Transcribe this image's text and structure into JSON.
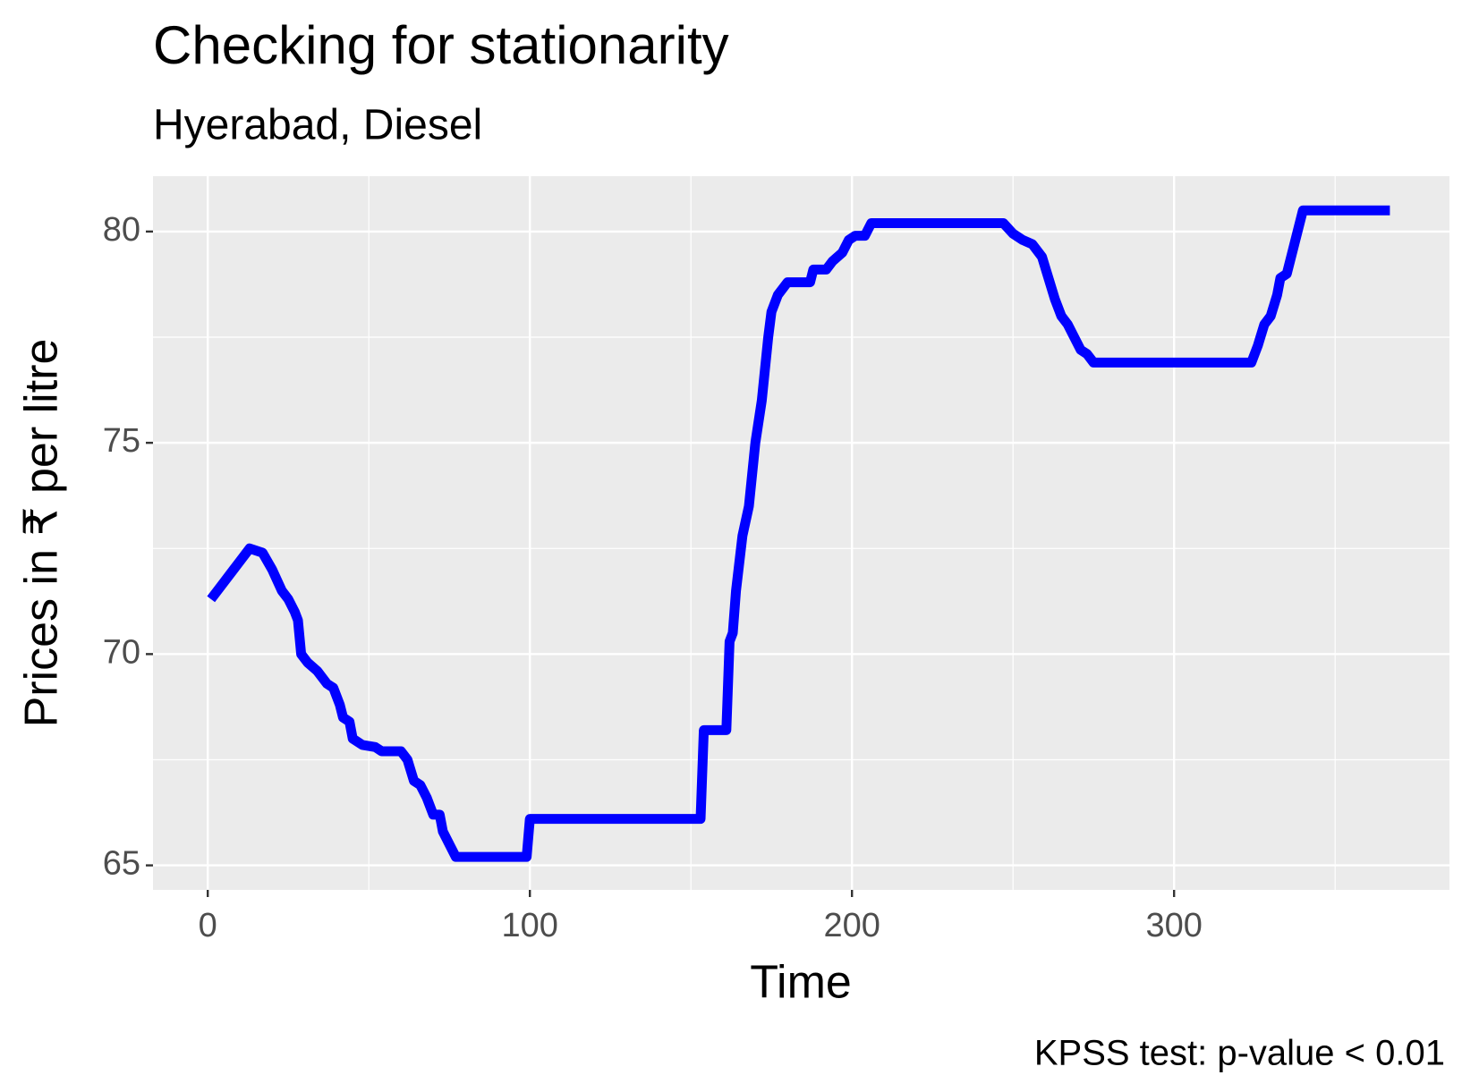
{
  "chart_data": {
    "type": "line",
    "title": "Checking for stationarity",
    "subtitle": "Hyerabad, Diesel",
    "x_label": "Time",
    "y_label": "Prices in ₹ per litre",
    "caption": "KPSS test: p-value < 0.01",
    "x": [
      1,
      5,
      8,
      10,
      13,
      17,
      20,
      23,
      25,
      27,
      28,
      29,
      31,
      34,
      37,
      39,
      41,
      42,
      44,
      45,
      48,
      52,
      54,
      58,
      60,
      62,
      64,
      66,
      68,
      70,
      72,
      73,
      75,
      77,
      99,
      100,
      153,
      154,
      161,
      162,
      163,
      164,
      166,
      168,
      170,
      172,
      174,
      175,
      177,
      180,
      187,
      188,
      192,
      194,
      197,
      199,
      201,
      204,
      206,
      247,
      250,
      253,
      256,
      259,
      261,
      263,
      265,
      267,
      269,
      271,
      273,
      275,
      324,
      326,
      328,
      330,
      332,
      333,
      335,
      337,
      340,
      367
    ],
    "series": [
      {
        "name": "Diesel",
        "color": "#0000ff",
        "values": [
          71.3,
          71.7,
          72.0,
          72.2,
          72.5,
          72.4,
          72.0,
          71.5,
          71.3,
          71.0,
          70.8,
          70.0,
          69.8,
          69.6,
          69.3,
          69.2,
          68.8,
          68.5,
          68.4,
          68.0,
          67.85,
          67.8,
          67.7,
          67.7,
          67.7,
          67.5,
          67.0,
          66.9,
          66.6,
          66.2,
          66.2,
          65.8,
          65.5,
          65.2,
          65.2,
          66.1,
          66.1,
          68.2,
          68.2,
          70.3,
          70.5,
          71.5,
          72.8,
          73.5,
          75.0,
          76.0,
          77.5,
          78.1,
          78.5,
          78.8,
          78.8,
          79.1,
          79.1,
          79.3,
          79.5,
          79.8,
          79.9,
          79.9,
          80.2,
          80.2,
          79.95,
          79.8,
          79.7,
          79.4,
          78.9,
          78.4,
          78.0,
          77.8,
          77.5,
          77.2,
          77.1,
          76.9,
          76.9,
          77.3,
          77.8,
          78.0,
          78.5,
          78.9,
          79.0,
          79.6,
          80.5,
          80.5
        ]
      }
    ],
    "xlim": [
      -17,
      385.5
    ],
    "ylim": [
      64.42,
      81.31
    ],
    "xticks": [
      0,
      100,
      200,
      300
    ],
    "yticks": [
      65,
      70,
      75,
      80
    ],
    "grid": true,
    "minor_grid": true
  }
}
